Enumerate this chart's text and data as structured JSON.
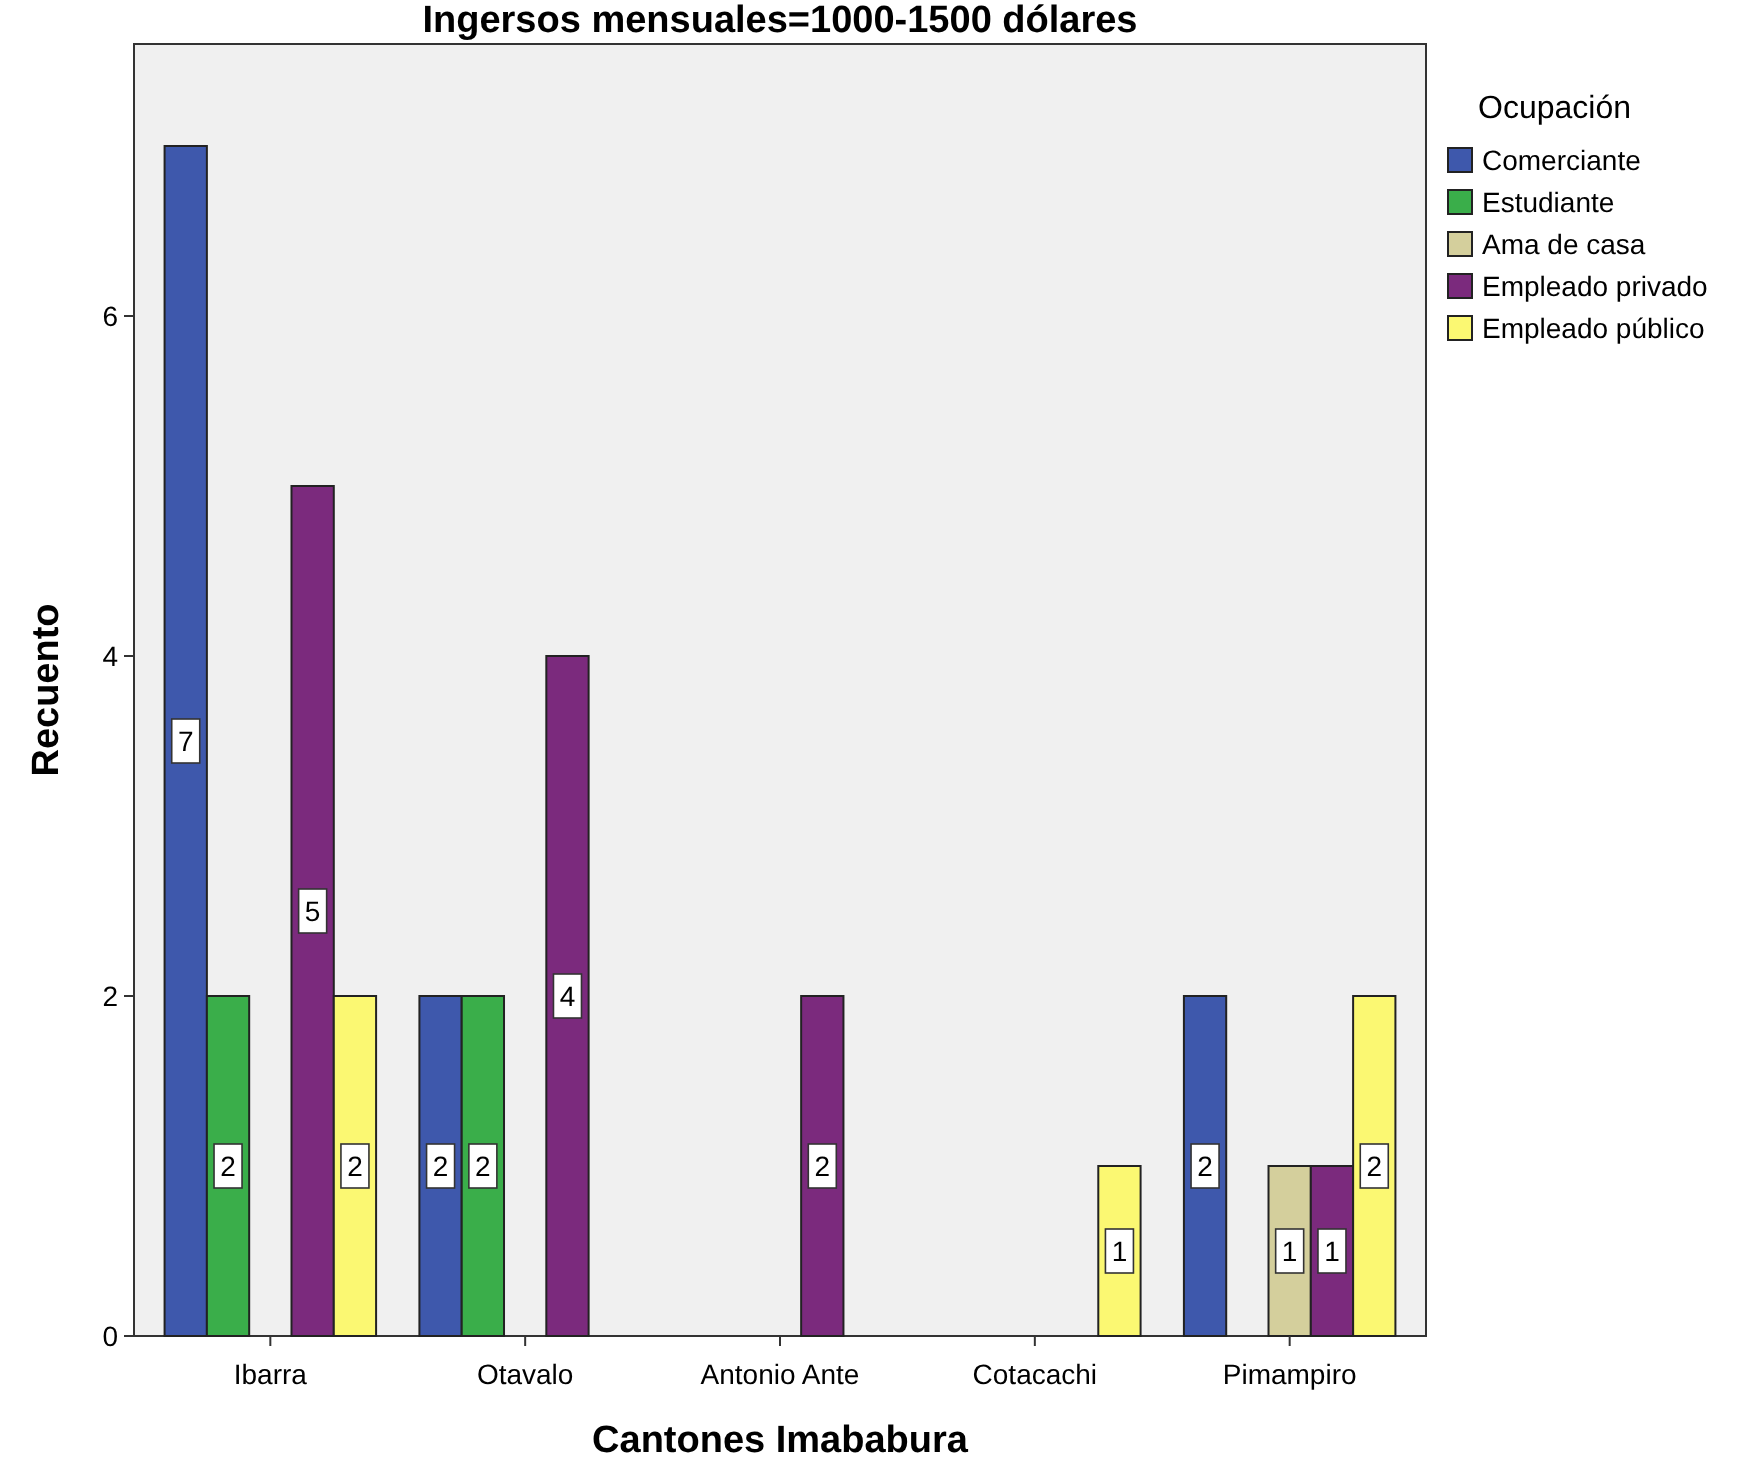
{
  "chart_data": {
    "type": "bar",
    "title": "Ingersos mensuales=1000-1500 dólares",
    "xlabel": "Cantones Imababura",
    "ylabel": "Recuento",
    "legend_title": "Ocupación",
    "categories": [
      "Ibarra",
      "Otavalo",
      "Antonio Ante",
      "Cotacachi",
      "Pimampiro"
    ],
    "series": [
      {
        "name": "Comerciante",
        "color": "#3e58ac",
        "values": [
          7,
          2,
          null,
          null,
          2
        ]
      },
      {
        "name": "Estudiante",
        "color": "#3aae4a",
        "values": [
          2,
          2,
          null,
          null,
          null
        ]
      },
      {
        "name": "Ama de casa",
        "color": "#d4cf9c",
        "values": [
          null,
          null,
          null,
          null,
          1
        ]
      },
      {
        "name": "Empleado privado",
        "color": "#7b2a7d",
        "values": [
          5,
          4,
          2,
          null,
          1
        ]
      },
      {
        "name": "Empleado público",
        "color": "#fbf872",
        "values": [
          2,
          null,
          null,
          1,
          2
        ]
      }
    ],
    "ylim": [
      0,
      7.6
    ],
    "yticks": [
      0,
      2,
      4,
      6
    ],
    "legend": "right",
    "data_labels": true,
    "grid": false
  }
}
